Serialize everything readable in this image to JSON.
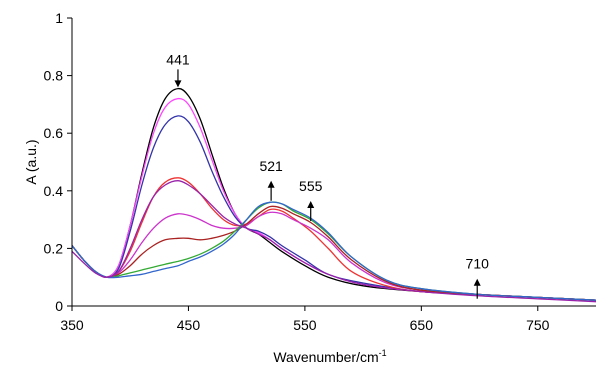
{
  "chart_data": {
    "type": "line",
    "title": "",
    "xlabel": "Wavenumber/cm",
    "xlabel_sup": "-1",
    "ylabel": "A (a.u.)",
    "xlim": [
      350,
      800
    ],
    "ylim": [
      0,
      1
    ],
    "xticks": [
      350,
      450,
      550,
      650,
      750
    ],
    "yticks": [
      0,
      0.2,
      0.4,
      0.6,
      0.8,
      1
    ],
    "ytick_labels": [
      "0",
      "0.2",
      "0.4",
      "0.6",
      "0.8",
      "1"
    ],
    "grid": false,
    "legend": "none",
    "annotations": [
      {
        "text": "441",
        "x": 441,
        "y": 0.78,
        "direction": "down"
      },
      {
        "text": "521",
        "x": 521,
        "y": 0.4,
        "direction": "up"
      },
      {
        "text": "555",
        "x": 555,
        "y": 0.33,
        "direction": "up"
      },
      {
        "text": "710",
        "x": 698,
        "y": 0.06,
        "direction": "up"
      }
    ],
    "series": [
      {
        "color": "#000000",
        "points": [
          [
            350,
            0.21
          ],
          [
            360,
            0.16
          ],
          [
            370,
            0.12
          ],
          [
            380,
            0.1
          ],
          [
            390,
            0.14
          ],
          [
            400,
            0.28
          ],
          [
            410,
            0.46
          ],
          [
            420,
            0.62
          ],
          [
            430,
            0.72
          ],
          [
            441,
            0.755
          ],
          [
            450,
            0.73
          ],
          [
            460,
            0.65
          ],
          [
            470,
            0.53
          ],
          [
            480,
            0.41
          ],
          [
            490,
            0.32
          ],
          [
            500,
            0.27
          ],
          [
            510,
            0.25
          ],
          [
            520,
            0.22
          ],
          [
            530,
            0.19
          ],
          [
            550,
            0.14
          ],
          [
            570,
            0.1
          ],
          [
            600,
            0.07
          ],
          [
            650,
            0.05
          ],
          [
            700,
            0.04
          ],
          [
            750,
            0.03
          ],
          [
            800,
            0.02
          ]
        ]
      },
      {
        "color": "#ff44ff",
        "points": [
          [
            350,
            0.21
          ],
          [
            360,
            0.16
          ],
          [
            370,
            0.12
          ],
          [
            380,
            0.1
          ],
          [
            390,
            0.14
          ],
          [
            400,
            0.28
          ],
          [
            410,
            0.45
          ],
          [
            420,
            0.6
          ],
          [
            430,
            0.69
          ],
          [
            441,
            0.72
          ],
          [
            450,
            0.7
          ],
          [
            460,
            0.62
          ],
          [
            470,
            0.51
          ],
          [
            480,
            0.4
          ],
          [
            490,
            0.32
          ],
          [
            500,
            0.27
          ],
          [
            510,
            0.255
          ],
          [
            520,
            0.23
          ],
          [
            530,
            0.2
          ],
          [
            550,
            0.15
          ],
          [
            570,
            0.11
          ],
          [
            600,
            0.075
          ],
          [
            650,
            0.05
          ],
          [
            700,
            0.04
          ],
          [
            750,
            0.03
          ],
          [
            800,
            0.02
          ]
        ]
      },
      {
        "color": "#3333aa",
        "points": [
          [
            350,
            0.21
          ],
          [
            360,
            0.16
          ],
          [
            370,
            0.12
          ],
          [
            380,
            0.1
          ],
          [
            390,
            0.13
          ],
          [
            400,
            0.26
          ],
          [
            410,
            0.42
          ],
          [
            420,
            0.55
          ],
          [
            430,
            0.63
          ],
          [
            441,
            0.66
          ],
          [
            450,
            0.64
          ],
          [
            460,
            0.57
          ],
          [
            470,
            0.47
          ],
          [
            480,
            0.38
          ],
          [
            490,
            0.31
          ],
          [
            500,
            0.27
          ],
          [
            510,
            0.26
          ],
          [
            520,
            0.24
          ],
          [
            530,
            0.21
          ],
          [
            550,
            0.16
          ],
          [
            570,
            0.11
          ],
          [
            600,
            0.08
          ],
          [
            650,
            0.05
          ],
          [
            700,
            0.04
          ],
          [
            750,
            0.03
          ],
          [
            800,
            0.02
          ]
        ]
      },
      {
        "color": "#ee3333",
        "points": [
          [
            350,
            0.21
          ],
          [
            360,
            0.16
          ],
          [
            370,
            0.12
          ],
          [
            380,
            0.1
          ],
          [
            390,
            0.12
          ],
          [
            400,
            0.19
          ],
          [
            410,
            0.29
          ],
          [
            420,
            0.38
          ],
          [
            430,
            0.43
          ],
          [
            441,
            0.445
          ],
          [
            450,
            0.43
          ],
          [
            460,
            0.39
          ],
          [
            470,
            0.34
          ],
          [
            480,
            0.3
          ],
          [
            490,
            0.28
          ],
          [
            500,
            0.285
          ],
          [
            510,
            0.31
          ],
          [
            520,
            0.335
          ],
          [
            530,
            0.33
          ],
          [
            540,
            0.305
          ],
          [
            555,
            0.26
          ],
          [
            570,
            0.2
          ],
          [
            590,
            0.12
          ],
          [
            620,
            0.07
          ],
          [
            650,
            0.05
          ],
          [
            700,
            0.04
          ],
          [
            750,
            0.03
          ],
          [
            800,
            0.02
          ]
        ]
      },
      {
        "color": "#cc33cc",
        "points": [
          [
            350,
            0.21
          ],
          [
            360,
            0.16
          ],
          [
            370,
            0.12
          ],
          [
            380,
            0.1
          ],
          [
            390,
            0.115
          ],
          [
            400,
            0.16
          ],
          [
            410,
            0.22
          ],
          [
            420,
            0.27
          ],
          [
            430,
            0.305
          ],
          [
            441,
            0.32
          ],
          [
            450,
            0.315
          ],
          [
            460,
            0.3
          ],
          [
            470,
            0.28
          ],
          [
            480,
            0.27
          ],
          [
            490,
            0.27
          ],
          [
            500,
            0.28
          ],
          [
            510,
            0.31
          ],
          [
            520,
            0.325
          ],
          [
            530,
            0.32
          ],
          [
            540,
            0.3
          ],
          [
            555,
            0.27
          ],
          [
            570,
            0.23
          ],
          [
            590,
            0.15
          ],
          [
            620,
            0.08
          ],
          [
            650,
            0.055
          ],
          [
            700,
            0.04
          ],
          [
            750,
            0.03
          ],
          [
            800,
            0.02
          ]
        ]
      },
      {
        "color": "#aa2222",
        "points": [
          [
            350,
            0.21
          ],
          [
            360,
            0.16
          ],
          [
            370,
            0.12
          ],
          [
            380,
            0.1
          ],
          [
            390,
            0.11
          ],
          [
            400,
            0.14
          ],
          [
            410,
            0.18
          ],
          [
            420,
            0.21
          ],
          [
            430,
            0.23
          ],
          [
            441,
            0.235
          ],
          [
            450,
            0.235
          ],
          [
            460,
            0.23
          ],
          [
            470,
            0.235
          ],
          [
            480,
            0.245
          ],
          [
            490,
            0.26
          ],
          [
            500,
            0.285
          ],
          [
            510,
            0.32
          ],
          [
            520,
            0.345
          ],
          [
            530,
            0.34
          ],
          [
            540,
            0.32
          ],
          [
            555,
            0.29
          ],
          [
            570,
            0.24
          ],
          [
            590,
            0.16
          ],
          [
            620,
            0.085
          ],
          [
            650,
            0.055
          ],
          [
            700,
            0.04
          ],
          [
            750,
            0.03
          ],
          [
            800,
            0.02
          ]
        ]
      },
      {
        "color": "#33aa33",
        "points": [
          [
            350,
            0.21
          ],
          [
            360,
            0.16
          ],
          [
            370,
            0.12
          ],
          [
            380,
            0.1
          ],
          [
            390,
            0.105
          ],
          [
            400,
            0.115
          ],
          [
            410,
            0.125
          ],
          [
            420,
            0.135
          ],
          [
            430,
            0.145
          ],
          [
            441,
            0.155
          ],
          [
            450,
            0.165
          ],
          [
            460,
            0.18
          ],
          [
            470,
            0.2
          ],
          [
            480,
            0.225
          ],
          [
            490,
            0.26
          ],
          [
            500,
            0.3
          ],
          [
            510,
            0.34
          ],
          [
            520,
            0.36
          ],
          [
            530,
            0.355
          ],
          [
            540,
            0.33
          ],
          [
            555,
            0.3
          ],
          [
            570,
            0.25
          ],
          [
            590,
            0.17
          ],
          [
            620,
            0.09
          ],
          [
            650,
            0.06
          ],
          [
            700,
            0.04
          ],
          [
            750,
            0.03
          ],
          [
            800,
            0.02
          ]
        ]
      },
      {
        "color": "#3366cc",
        "points": [
          [
            350,
            0.21
          ],
          [
            360,
            0.16
          ],
          [
            370,
            0.12
          ],
          [
            380,
            0.1
          ],
          [
            390,
            0.1
          ],
          [
            400,
            0.105
          ],
          [
            410,
            0.11
          ],
          [
            420,
            0.12
          ],
          [
            430,
            0.13
          ],
          [
            441,
            0.14
          ],
          [
            450,
            0.155
          ],
          [
            460,
            0.17
          ],
          [
            470,
            0.19
          ],
          [
            480,
            0.215
          ],
          [
            490,
            0.25
          ],
          [
            500,
            0.3
          ],
          [
            510,
            0.345
          ],
          [
            520,
            0.36
          ],
          [
            530,
            0.355
          ],
          [
            540,
            0.335
          ],
          [
            555,
            0.305
          ],
          [
            570,
            0.255
          ],
          [
            590,
            0.17
          ],
          [
            620,
            0.09
          ],
          [
            650,
            0.06
          ],
          [
            700,
            0.04
          ],
          [
            750,
            0.03
          ],
          [
            800,
            0.02
          ]
        ]
      },
      {
        "color": "#9922aa",
        "points": [
          [
            350,
            0.19
          ],
          [
            360,
            0.15
          ],
          [
            370,
            0.115
          ],
          [
            380,
            0.1
          ],
          [
            390,
            0.12
          ],
          [
            400,
            0.2
          ],
          [
            410,
            0.3
          ],
          [
            420,
            0.38
          ],
          [
            430,
            0.42
          ],
          [
            441,
            0.435
          ],
          [
            450,
            0.42
          ],
          [
            460,
            0.39
          ],
          [
            470,
            0.35
          ],
          [
            480,
            0.31
          ],
          [
            490,
            0.285
          ],
          [
            500,
            0.27
          ],
          [
            510,
            0.25
          ],
          [
            520,
            0.23
          ],
          [
            530,
            0.2
          ],
          [
            550,
            0.15
          ],
          [
            570,
            0.11
          ],
          [
            600,
            0.075
          ],
          [
            650,
            0.05
          ],
          [
            700,
            0.035
          ],
          [
            750,
            0.025
          ],
          [
            800,
            0.015
          ]
        ]
      }
    ]
  }
}
